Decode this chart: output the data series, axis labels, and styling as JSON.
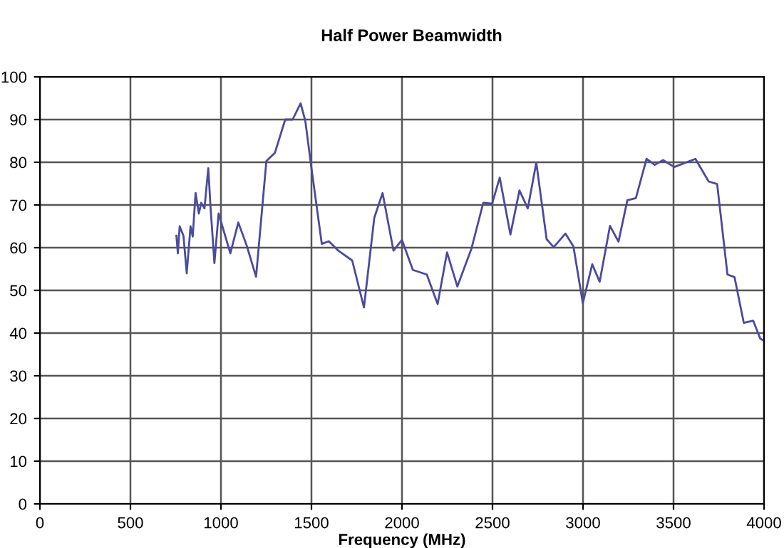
{
  "chart_data": {
    "type": "line",
    "title": "Half Power Beamwidth",
    "xlabel": "Frequency (MHz)",
    "series": [
      {
        "color": "#4a4a9e",
        "x": [
          754,
          762,
          772,
          793,
          811,
          832,
          844,
          860,
          878,
          891,
          909,
          930,
          943,
          964,
          987,
          1052,
          1096,
          1143,
          1194,
          1251,
          1298,
          1355,
          1396,
          1440,
          1466,
          1500,
          1557,
          1596,
          1648,
          1725,
          1790,
          1847,
          1893,
          1953,
          2000,
          2060,
          2137,
          2197,
          2249,
          2306,
          2384,
          2449,
          2498,
          2540,
          2599,
          2649,
          2695,
          2742,
          2799,
          2838,
          2903,
          2947,
          2999,
          3051,
          3092,
          3149,
          3196,
          3245,
          3292,
          3351,
          3396,
          3442,
          3504,
          3621,
          3694,
          3741,
          3798,
          3837,
          3888,
          3940,
          3979,
          4000
        ],
        "values": [
          62.8,
          58.7,
          65,
          62.8,
          54,
          65,
          62.6,
          72.8,
          68,
          70.5,
          69.2,
          78.6,
          69.2,
          56.4,
          68,
          58.7,
          65.9,
          60.4,
          53.2,
          80.3,
          82.2,
          90,
          90,
          93.8,
          89.7,
          78.6,
          60.9,
          61.5,
          59.3,
          57,
          46,
          67,
          72.8,
          59.3,
          61.8,
          54.8,
          53.7,
          46.8,
          58.9,
          50.9,
          59.8,
          70.5,
          70.3,
          76.4,
          63.1,
          73.4,
          69.2,
          79.9,
          62,
          60.1,
          63.3,
          60.3,
          47,
          56.1,
          52,
          65.1,
          61.4,
          71.1,
          71.6,
          80.8,
          79.4,
          80.5,
          78.9,
          80.8,
          75.5,
          74.9,
          53.7,
          53.1,
          42.4,
          42.9,
          38.7,
          38.2
        ]
      }
    ],
    "xlim": [
      0,
      4000
    ],
    "ylim": [
      0,
      100
    ],
    "xticks": [
      0,
      500,
      1000,
      1500,
      2000,
      2500,
      3000,
      3500,
      4000
    ],
    "yticks": [
      0,
      10,
      20,
      30,
      40,
      50,
      60,
      70,
      80,
      90,
      100
    ],
    "grid": true,
    "legend": false,
    "marker": "none",
    "line_style": "solid"
  }
}
